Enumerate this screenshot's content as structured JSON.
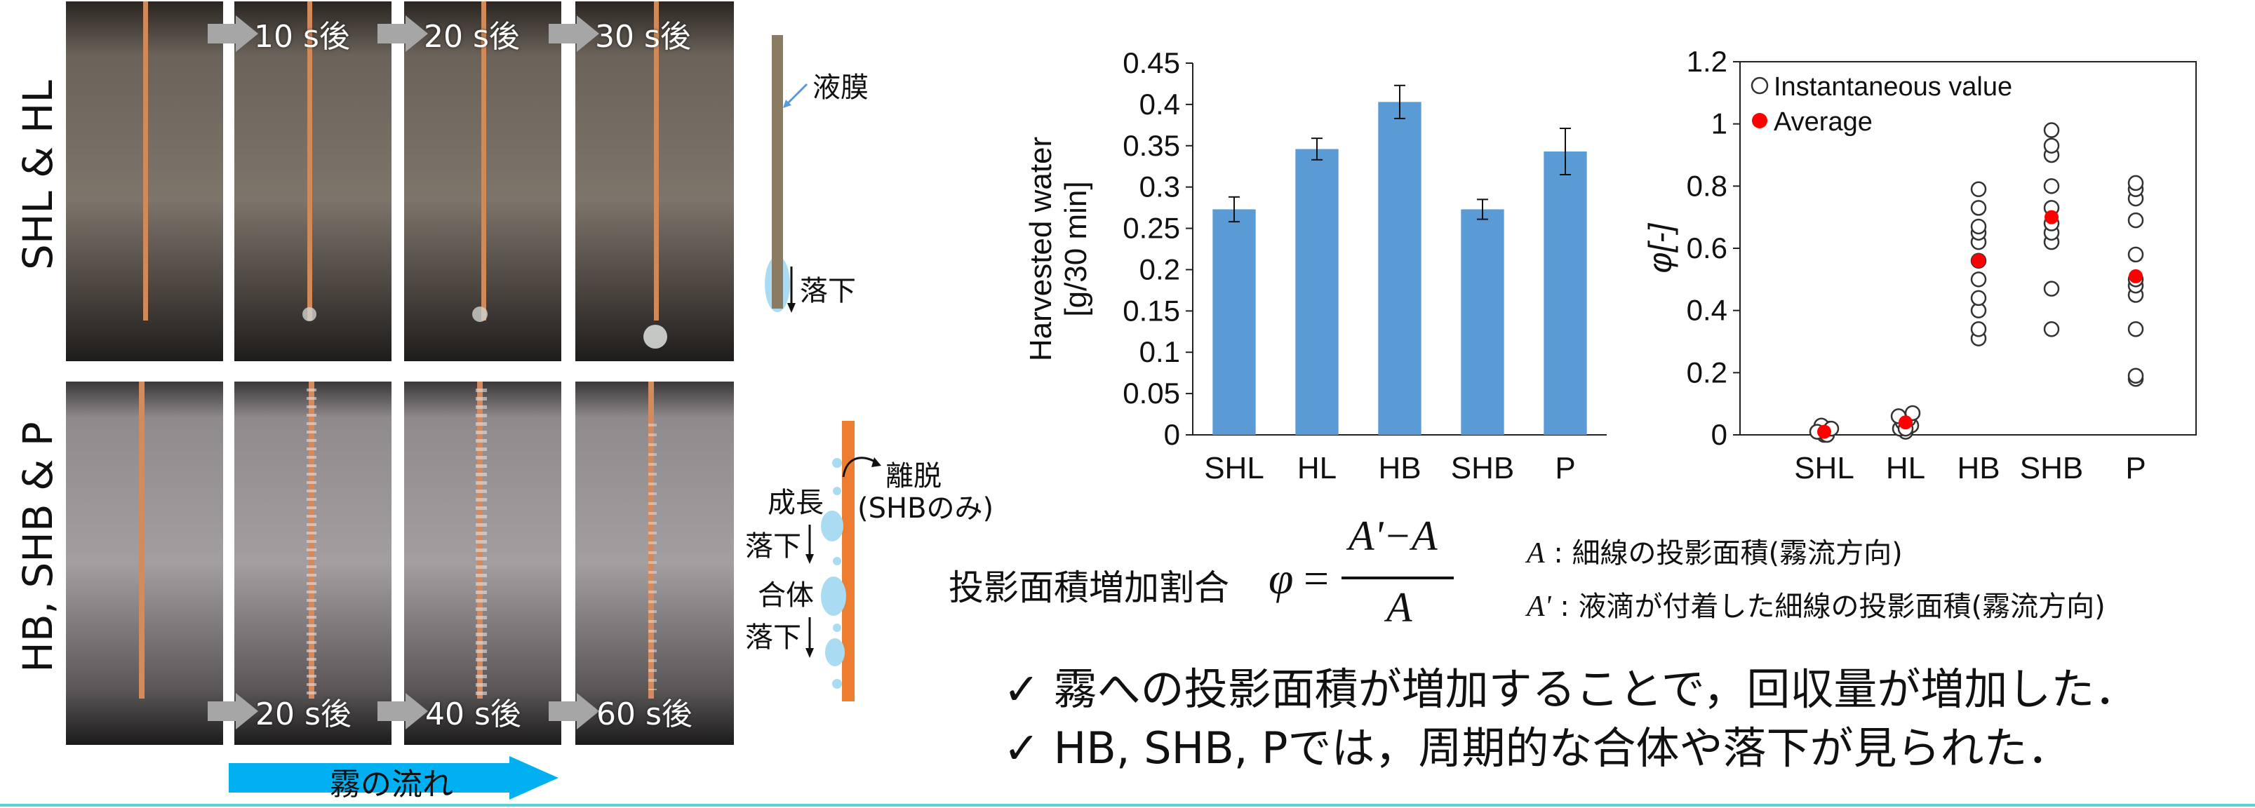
{
  "photos": {
    "row1_label": "SHL & HL",
    "row2_label": "HB, SHB & P",
    "row1_times": [
      "10 s後",
      "20 s後",
      "30 s後"
    ],
    "row2_times": [
      "20 s後",
      "40 s後",
      "60 s後"
    ],
    "flow_label": "霧の流れ"
  },
  "schematic": {
    "liquid_film": "液膜",
    "fall": "落下",
    "detach": "離脱",
    "detach_note": "(SHBのみ)",
    "growth": "成長",
    "fall2": "落下",
    "coalesce": "合体",
    "fall3": "落下"
  },
  "equation": {
    "label": "投影面積増加割合",
    "lhs": "φ",
    "eq": "=",
    "numerator": "A'−A",
    "denominator": "A",
    "def_a_sym": "A",
    "def_a_text": " : 細線の投影面積(霧流方向)",
    "def_a2_sym": "A'",
    "def_a2_text": " : 液滴が付着した細線の投影面積(霧流方向)"
  },
  "conclusions": [
    "✓ 霧への投影面積が増加することで，回収量が増加した．",
    "✓ HB, SHB, Pでは，周期的な合体や落下が見られた．"
  ],
  "colors": {
    "bar": "#5b9bd5",
    "arrow_grey": "#a6a6a6",
    "flow_arrow": "#00b0f0",
    "avg_dot": "#ff0000",
    "orange_wire": "#ed7d31",
    "film": "#8c7b63",
    "droplet": "#a9dcf2",
    "bottom_rule": "#5ed0d8"
  },
  "chart_data": [
    {
      "type": "bar",
      "categories": [
        "SHL",
        "HL",
        "HB",
        "SHB",
        "P"
      ],
      "values": [
        0.273,
        0.346,
        0.403,
        0.273,
        0.343
      ],
      "errors": [
        0.015,
        0.013,
        0.02,
        0.012,
        0.028
      ],
      "ylabel_line1": "Harvested water",
      "ylabel_line2": "[g/30 min]",
      "ylim": [
        0,
        0.45
      ],
      "yticks": [
        0,
        0.05,
        0.1,
        0.15,
        0.2,
        0.25,
        0.3,
        0.35,
        0.4,
        0.45
      ],
      "ytick_labels": [
        "0",
        "0.05",
        "0.1",
        "0.15",
        "0.2",
        "0.25",
        "0.3",
        "0.35",
        "0.4",
        "0.45"
      ],
      "grid": false
    },
    {
      "type": "scatter",
      "categories": [
        "SHL",
        "HL",
        "HB",
        "SHB",
        "P"
      ],
      "ylabel": "φ[-]",
      "ylim": [
        0,
        1.2
      ],
      "yticks": [
        0,
        0.2,
        0.4,
        0.6,
        0.8,
        1.0,
        1.2
      ],
      "ytick_labels": [
        "0",
        "0.2",
        "0.4",
        "0.6",
        "0.8",
        "1",
        "1.2"
      ],
      "legend": [
        "Instantaneous value",
        "Average"
      ],
      "legend_position": "top-left",
      "series": [
        {
          "name": "Instantaneous value",
          "values": [
            [
              0.0,
              0.01,
              0.02,
              0.03,
              0.0,
              0.01,
              0.02
            ],
            [
              0.01,
              0.02,
              0.03,
              0.04,
              0.05,
              0.06,
              0.07,
              0.02
            ],
            [
              0.31,
              0.34,
              0.4,
              0.44,
              0.5,
              0.56,
              0.62,
              0.65,
              0.67,
              0.73,
              0.79
            ],
            [
              0.34,
              0.47,
              0.62,
              0.65,
              0.68,
              0.73,
              0.8,
              0.9,
              0.93,
              0.98
            ],
            [
              0.18,
              0.19,
              0.34,
              0.45,
              0.48,
              0.5,
              0.58,
              0.69,
              0.76,
              0.79,
              0.81
            ]
          ]
        },
        {
          "name": "Average",
          "values": [
            0.01,
            0.04,
            0.56,
            0.7,
            0.51
          ]
        }
      ],
      "grid": false
    }
  ]
}
